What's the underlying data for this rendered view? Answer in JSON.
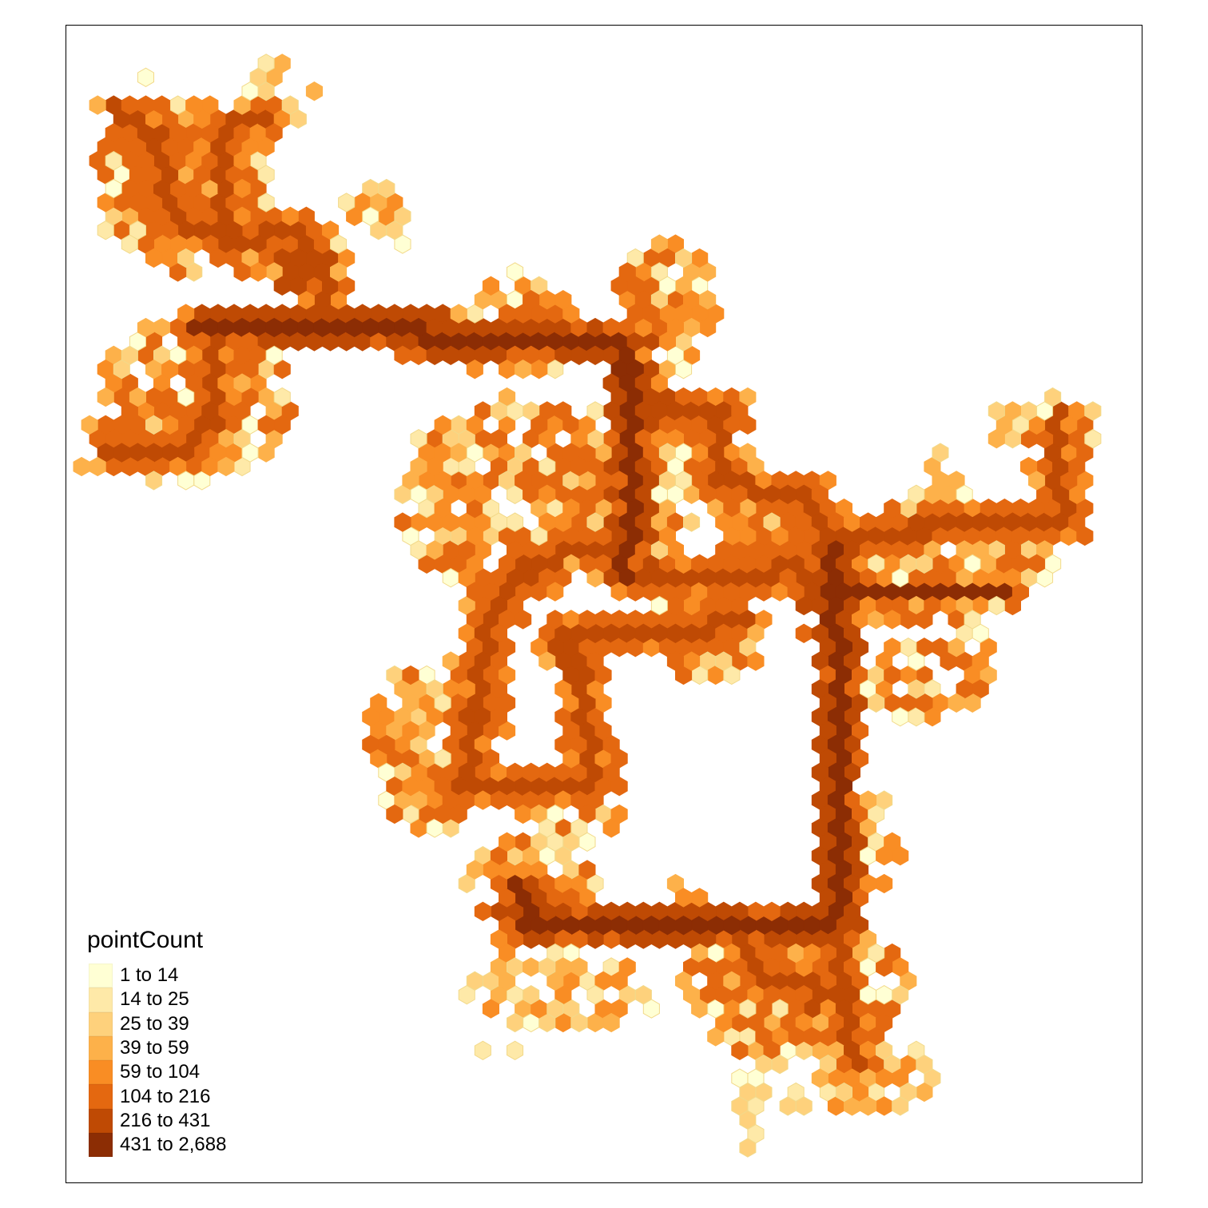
{
  "legend": {
    "title": "pointCount",
    "classes": [
      {
        "label": "1 to 14",
        "color": "#ffffd4"
      },
      {
        "label": "14 to 25",
        "color": "#fee9a8"
      },
      {
        "label": "25 to 39",
        "color": "#fed17c"
      },
      {
        "label": "39 to 59",
        "color": "#fdb14a"
      },
      {
        "label": "59 to 104",
        "color": "#f98d24"
      },
      {
        "label": "104 to 216",
        "color": "#e46810"
      },
      {
        "label": "216 to 431",
        "color": "#bf4a04"
      },
      {
        "label": "431 to 2,688",
        "color": "#8c2d04"
      }
    ]
  },
  "chart_data": {
    "type": "heatmap",
    "variable": "pointCount",
    "class_labels": [
      "1 to 14",
      "14 to 25",
      "25 to 39",
      "39 to 59",
      "59 to 104",
      "104 to 216",
      "216 to 431",
      "431 to 2,688"
    ],
    "hexbins": "clusters of hexagonal bins forming a branching network; densest (431 to 2,688) along long connecting corridors"
  }
}
